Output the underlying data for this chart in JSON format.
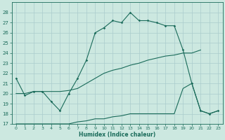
{
  "xlabel": "Humidex (Indice chaleur)",
  "x_ticks": [
    0,
    1,
    2,
    3,
    4,
    5,
    6,
    7,
    8,
    9,
    10,
    11,
    12,
    13,
    14,
    15,
    16,
    17,
    18,
    19,
    20,
    21,
    22,
    23
  ],
  "ylim": [
    17,
    29
  ],
  "xlim": [
    -0.5,
    23.5
  ],
  "y_ticks": [
    17,
    18,
    19,
    20,
    21,
    22,
    23,
    24,
    25,
    26,
    27,
    28
  ],
  "bg_color": "#cce8e0",
  "grid_color": "#aacccc",
  "line_color": "#1a6b5a",
  "line1_x": [
    0,
    1,
    2,
    3,
    4,
    5,
    6,
    7,
    8,
    9,
    10,
    11,
    12,
    13,
    14,
    15,
    16,
    17,
    18,
    19,
    20,
    21,
    22,
    23
  ],
  "line1_y": [
    21.5,
    19.8,
    20.2,
    20.2,
    19.2,
    18.3,
    20.0,
    21.5,
    23.3,
    26.0,
    26.5,
    27.2,
    27.0,
    28.0,
    27.2,
    27.2,
    27.0,
    26.7,
    26.7,
    24.3,
    21.0,
    18.3,
    18.0,
    18.3
  ],
  "line2_x": [
    0,
    1,
    2,
    3,
    4,
    5,
    6,
    7,
    8,
    9,
    10,
    11,
    12,
    13,
    14,
    15,
    16,
    17,
    18,
    19,
    20,
    21
  ],
  "line2_y": [
    20.0,
    20.0,
    20.2,
    20.2,
    20.2,
    20.2,
    20.3,
    20.5,
    21.0,
    21.5,
    22.0,
    22.3,
    22.5,
    22.8,
    23.0,
    23.3,
    23.5,
    23.7,
    23.8,
    24.0,
    24.0,
    24.3
  ],
  "line3_x": [
    0,
    1,
    2,
    3,
    4,
    5,
    6,
    7,
    8,
    9,
    10,
    11,
    12,
    13,
    14,
    15,
    16,
    17,
    18,
    19,
    20,
    21,
    22,
    23
  ],
  "line3_y": [
    17.0,
    17.0,
    17.0,
    17.0,
    17.0,
    17.0,
    17.0,
    17.2,
    17.3,
    17.5,
    17.5,
    17.7,
    17.8,
    18.0,
    18.0,
    18.0,
    18.0,
    18.0,
    18.0,
    20.5,
    21.0,
    18.3,
    18.0,
    18.3
  ]
}
